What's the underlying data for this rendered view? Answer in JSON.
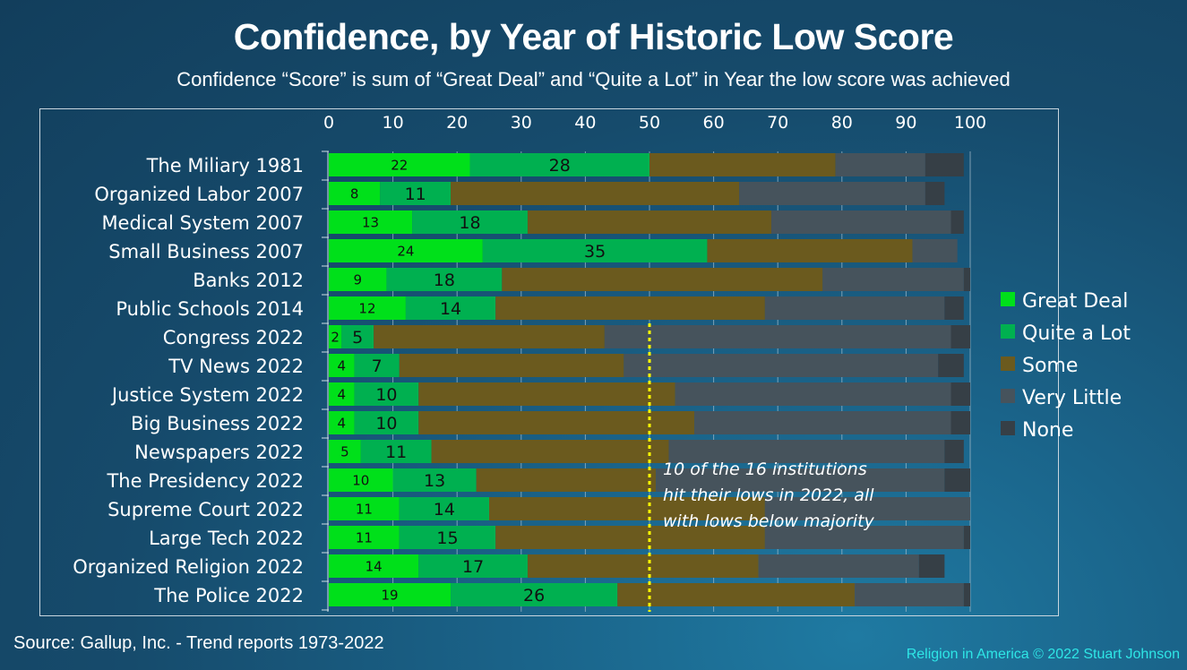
{
  "header": {
    "title": "Confidence, by Year of Historic Low Score",
    "subtitle": "Confidence “Score” is sum of “Great Deal” and “Quite a Lot” in Year the low score was achieved"
  },
  "footer": {
    "source": "Source: Gallup, Inc. - Trend reports 1973-2022",
    "credit": "Religion in America © 2022 Stuart Johnson"
  },
  "chart_data": {
    "type": "bar",
    "orientation": "horizontal",
    "stacked": true,
    "title": "Confidence, by Year of Historic Low Score",
    "subtitle": "Confidence “Score” is sum of “Great Deal” and “Quite a Lot” in Year the low score was achieved",
    "xlabel": "",
    "ylabel": "",
    "xlim": [
      0,
      100
    ],
    "x_ticks": [
      0,
      10,
      20,
      30,
      40,
      50,
      60,
      70,
      80,
      90,
      100
    ],
    "x_axis_position": "top",
    "grid": true,
    "legend_position": "right",
    "categories": [
      "The Miliary 1981",
      "Organized Labor 2007",
      "Medical System 2007",
      "Small Business 2007",
      "Banks 2012",
      "Public Schools 2014",
      "Congress 2022",
      "TV News 2022",
      "Justice System 2022",
      "Big Business 2022",
      "Newspapers 2022",
      "The Presidency 2022",
      "Supreme Court 2022",
      "Large Tech 2022",
      "Organized Religion 2022",
      "The Police 2022"
    ],
    "series": [
      {
        "name": "Great Deal",
        "color": "#00e01a",
        "labeled": true,
        "values": [
          22,
          8,
          13,
          24,
          9,
          12,
          2,
          4,
          4,
          4,
          5,
          10,
          11,
          11,
          14,
          19
        ]
      },
      {
        "name": "Quite a Lot",
        "color": "#00b050",
        "labeled": true,
        "values": [
          28,
          11,
          18,
          35,
          18,
          14,
          5,
          7,
          10,
          10,
          11,
          13,
          14,
          15,
          17,
          26
        ]
      },
      {
        "name": "Some",
        "color": "#6b5a1e",
        "labeled": false,
        "values": [
          29,
          45,
          38,
          32,
          50,
          42,
          36,
          35,
          40,
          43,
          37,
          28,
          43,
          42,
          36,
          37
        ]
      },
      {
        "name": "Very Little",
        "color": "#46535c",
        "labeled": false,
        "values": [
          14,
          29,
          28,
          7,
          22,
          28,
          54,
          49,
          43,
          40,
          43,
          45,
          32,
          31,
          25,
          17
        ]
      },
      {
        "name": "None",
        "color": "#363f46",
        "labeled": false,
        "values": [
          6,
          3,
          2,
          0,
          1,
          3,
          3,
          4,
          3,
          3,
          3,
          4,
          0,
          1,
          4,
          1
        ]
      }
    ],
    "reference_line": {
      "value": 50,
      "color": "#ffff00",
      "style": "dotted",
      "label": "majority"
    },
    "annotation": {
      "lines": [
        "10 of the 16 institutions",
        "hit their lows in 2022, all",
        "with lows below majority"
      ]
    }
  }
}
